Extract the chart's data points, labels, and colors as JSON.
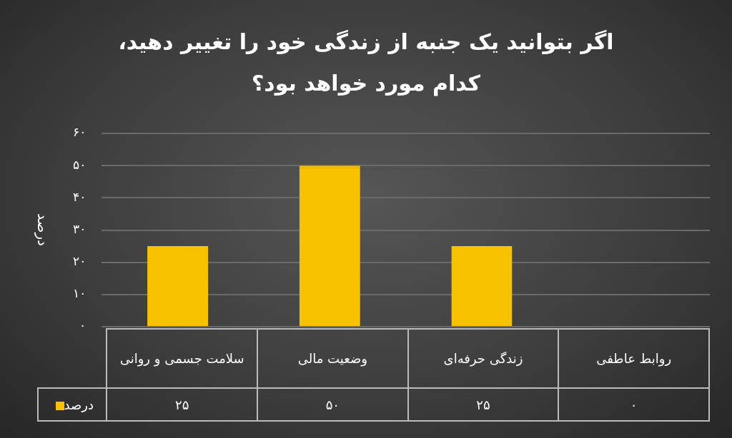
{
  "chart_data": {
    "type": "bar",
    "title": "اگر بتوانید یک جنبه از زندگی خود را تغییر دهید، کدام مورد خواهد بود؟",
    "ylabel": "درصد",
    "categories": [
      "سلامت جسمی و روانی",
      "وضعیت مالی",
      "زندگی حرفه‌ای",
      "روابط عاطفی"
    ],
    "series": [
      {
        "name": "درصد",
        "color": "#f7c300",
        "values": [
          25,
          50,
          25,
          0
        ],
        "value_labels": [
          "۲۵",
          "۵۰",
          "۲۵",
          "۰"
        ]
      }
    ],
    "ylim": [
      0,
      60
    ],
    "yticks": [
      {
        "value": 0,
        "label": "۰"
      },
      {
        "value": 10,
        "label": "۱۰"
      },
      {
        "value": 20,
        "label": "۲۰"
      },
      {
        "value": 30,
        "label": "۳۰"
      },
      {
        "value": 40,
        "label": "۴۰"
      },
      {
        "value": 50,
        "label": "۵۰"
      },
      {
        "value": 60,
        "label": "۶۰"
      }
    ],
    "grid": "y"
  }
}
